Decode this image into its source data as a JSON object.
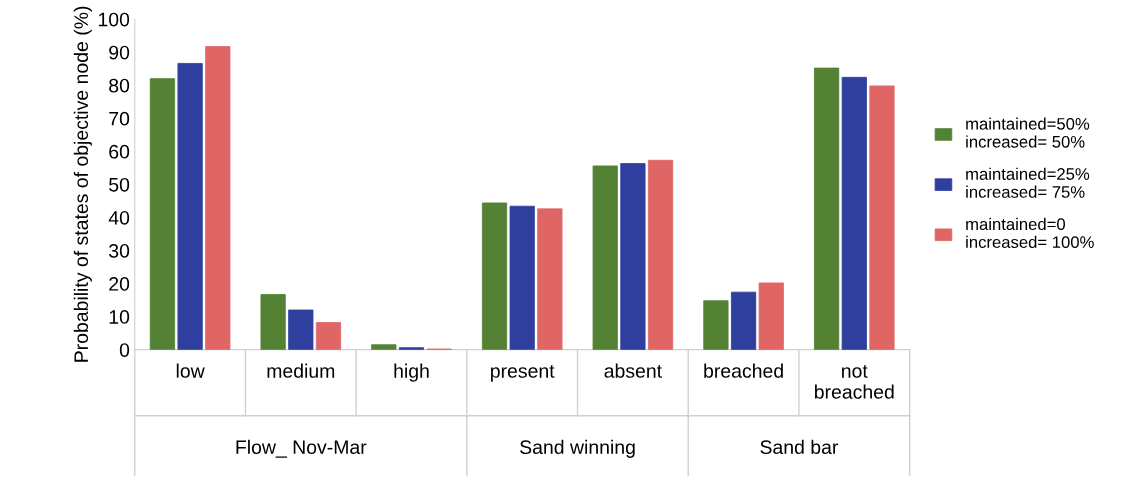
{
  "chart_data": {
    "type": "bar",
    "ylabel": "Probability of states of objective node (%)",
    "categories": [
      "low",
      "medium",
      "high",
      "present",
      "absent",
      "breached",
      "not breached"
    ],
    "series": [
      {
        "name": "maintained=50%\nincreased= 50%",
        "color": "#548235",
        "values": [
          82,
          16.7,
          1.5,
          44.4,
          55.6,
          14.8,
          85.2
        ]
      },
      {
        "name": "maintained=25%\nincreased= 75%",
        "color": "#2f3f9e",
        "values": [
          86.6,
          12,
          0.6,
          43.4,
          56.3,
          17.4,
          82.4
        ]
      },
      {
        "name": "maintained=0\nincreased= 100%",
        "color": "#e06666",
        "values": [
          91.7,
          8.2,
          0.2,
          42.6,
          57.3,
          20.2,
          79.8
        ]
      }
    ],
    "annotations": [
      "Flow_ Nov-Mar",
      "Sand winning",
      "Sand bar"
    ],
    "ylim": [
      0,
      100
    ],
    "yticks": [
      0,
      10,
      20,
      30,
      40,
      50,
      60,
      70,
      80,
      90,
      100
    ],
    "grid": false,
    "legend": "right"
  }
}
